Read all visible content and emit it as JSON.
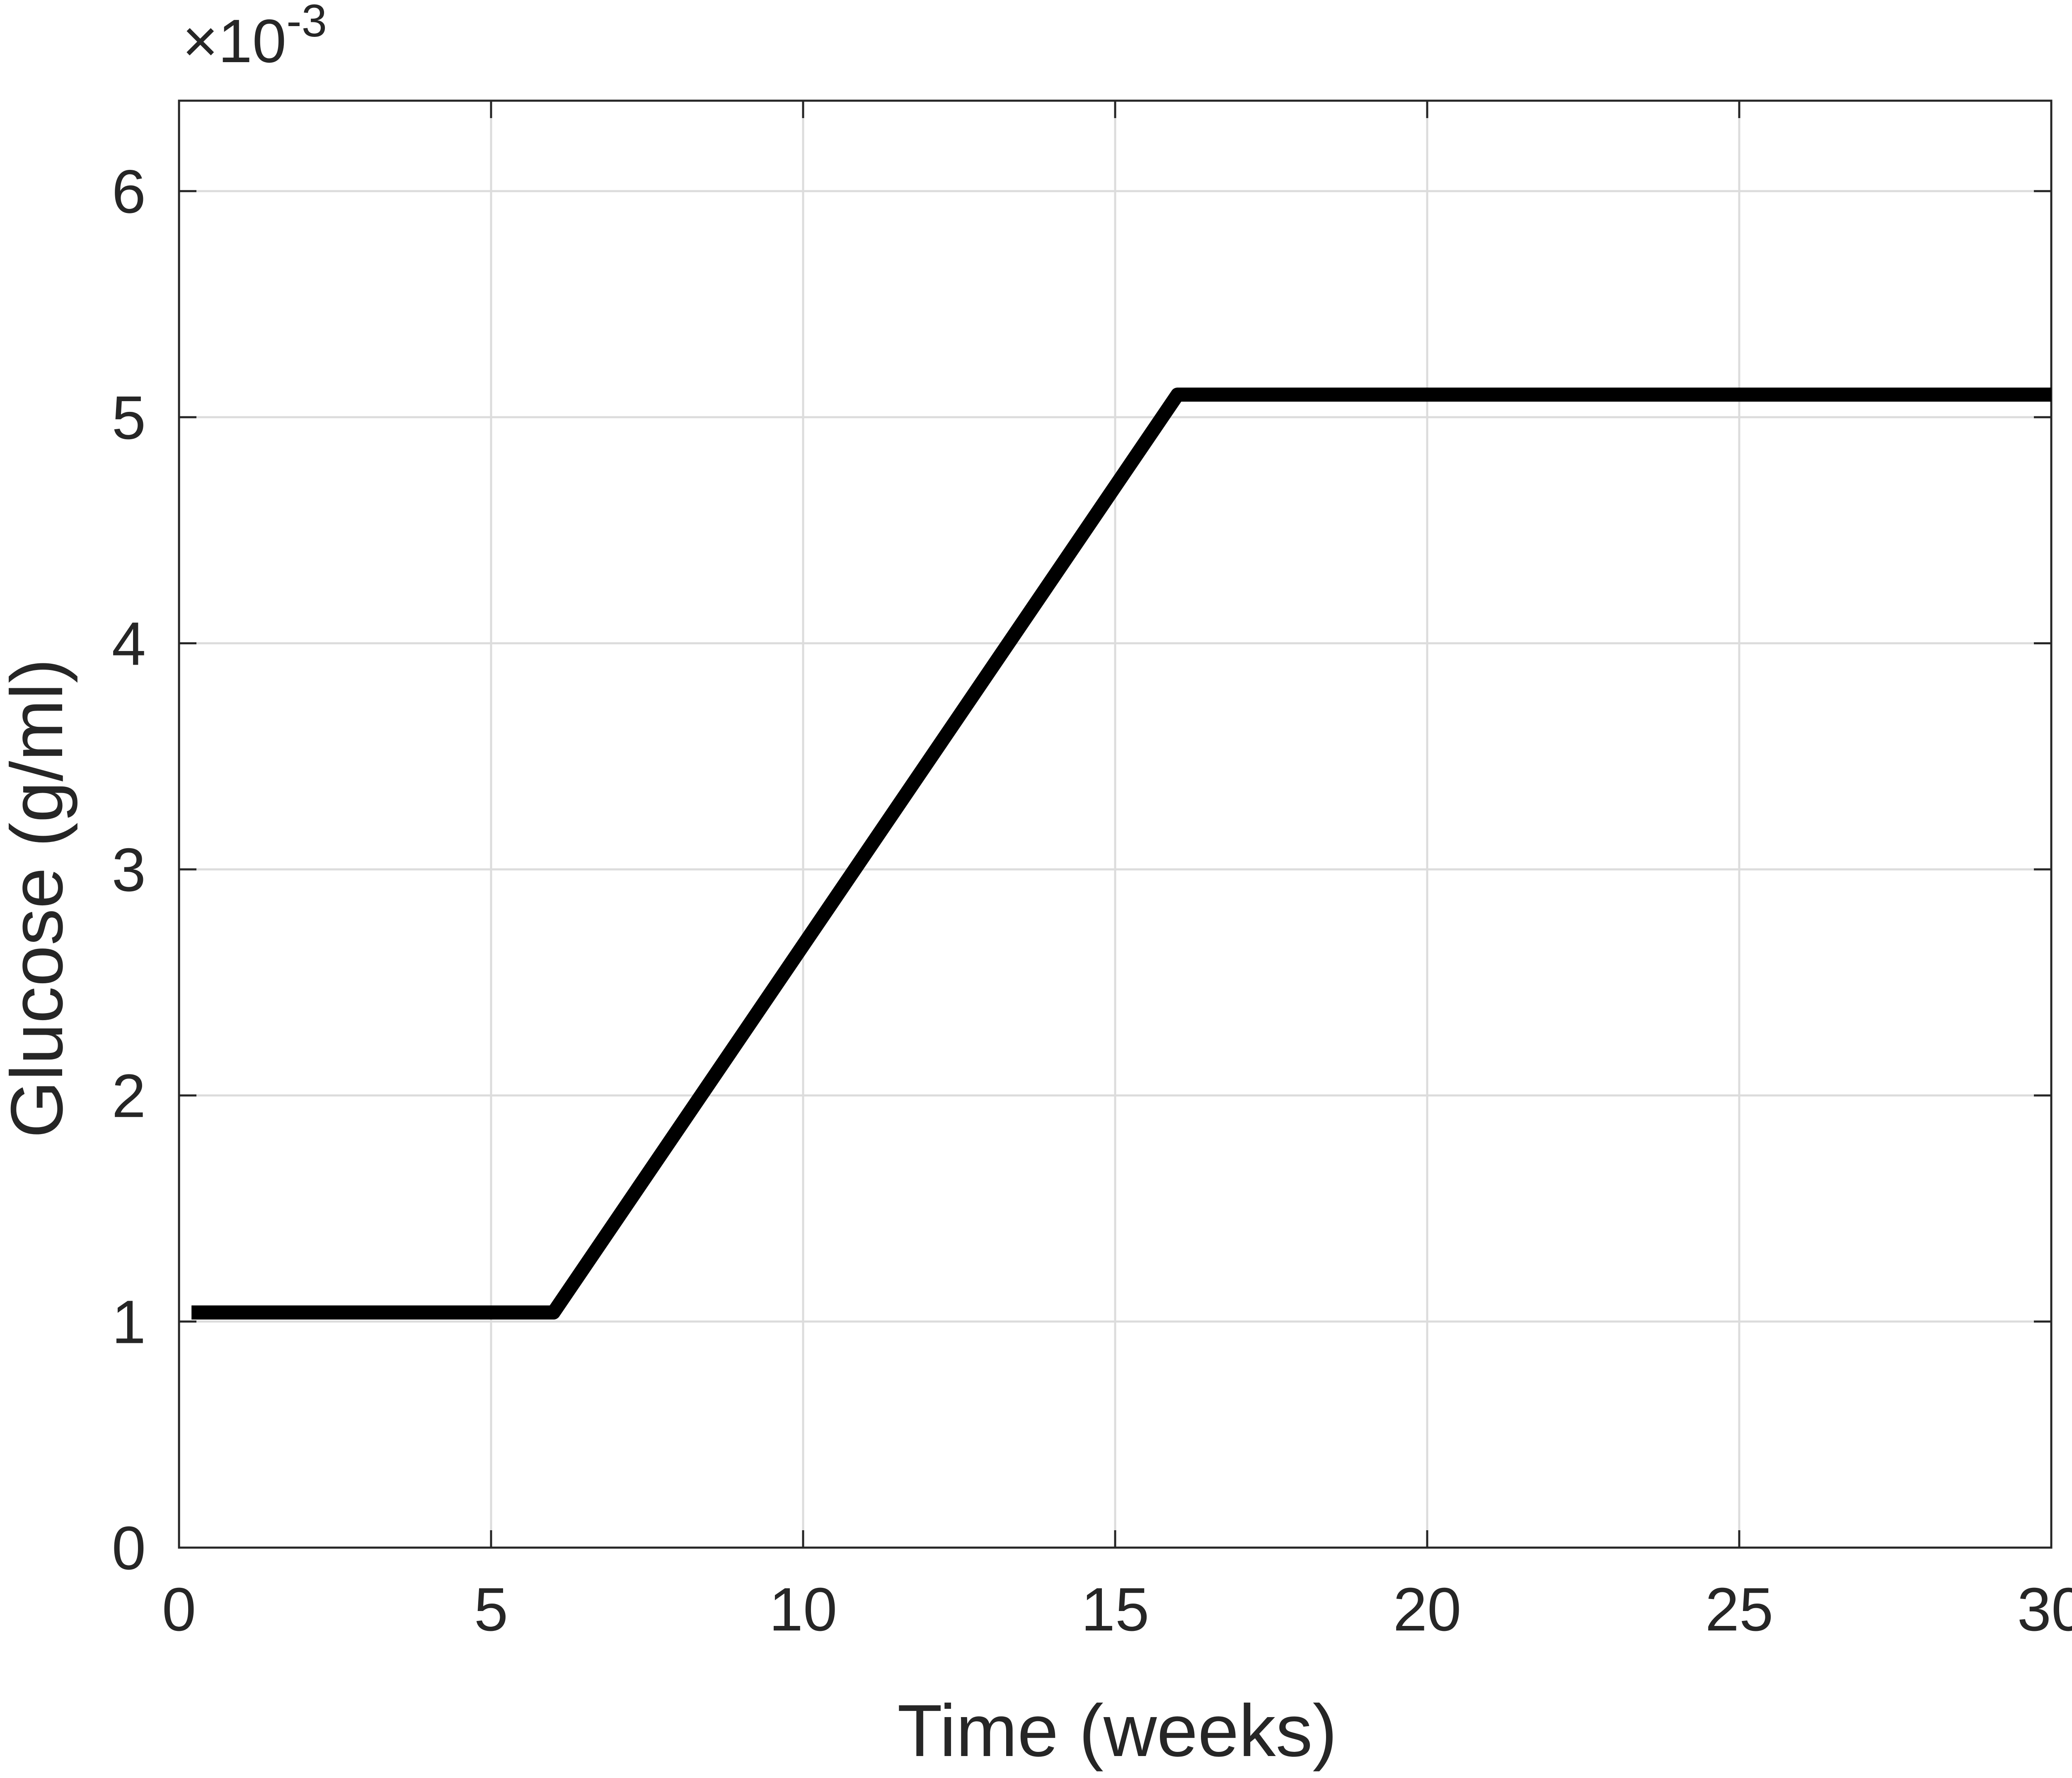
{
  "chart_data": {
    "type": "line",
    "title": "",
    "xlabel": "Time (weeks)",
    "ylabel": "Glucose (g/ml)",
    "y_exponent_label": {
      "prefix": "×10",
      "superscript": "-3"
    },
    "xlim": [
      0,
      30
    ],
    "ylim": [
      0,
      0.0064
    ],
    "xticks": [
      0,
      5,
      10,
      15,
      20,
      25,
      30
    ],
    "xtick_labels": [
      "0",
      "5",
      "10",
      "15",
      "20",
      "25",
      "30"
    ],
    "yticks": [
      0,
      0.001,
      0.002,
      0.003,
      0.004,
      0.005,
      0.006
    ],
    "ytick_labels": [
      "0",
      "1",
      "2",
      "3",
      "4",
      "5",
      "6"
    ],
    "grid": true,
    "legend": "none",
    "series": [
      {
        "color": "#000000",
        "x": [
          0.2,
          6,
          16,
          30
        ],
        "y": [
          0.00104,
          0.00104,
          0.0051,
          0.0051
        ]
      }
    ]
  }
}
